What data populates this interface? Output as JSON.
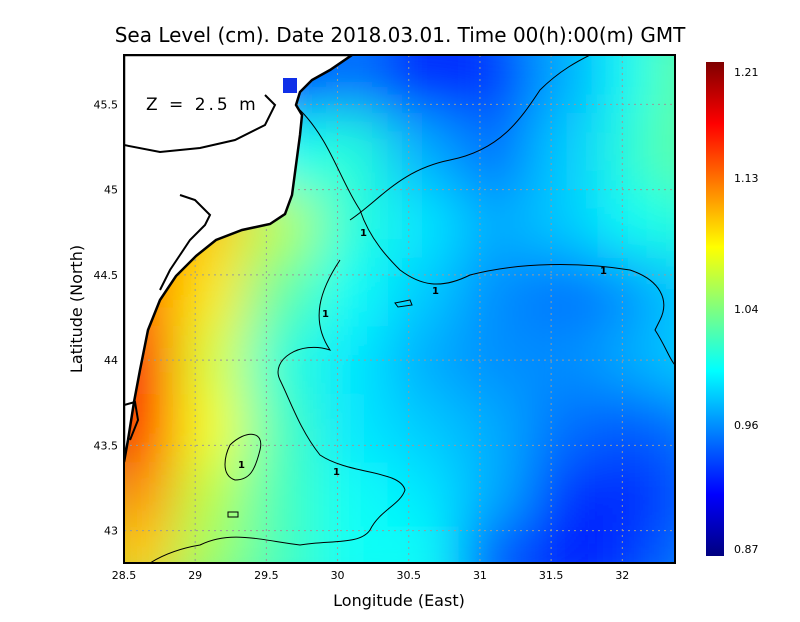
{
  "chart_data": {
    "type": "heatmap",
    "title": "Sea Level (cm). Date 2018.03.01. Time 00(h):00(m) GMT",
    "annotation": "Z = 2.5 m",
    "xlabel": "Longitude (East)",
    "ylabel": "Latitude (North)",
    "xlim": [
      28.5,
      32.37
    ],
    "ylim": [
      42.81,
      45.79
    ],
    "xticks": [
      "28.5",
      "29",
      "29.5",
      "30",
      "30.5",
      "31",
      "31.5",
      "32"
    ],
    "xtick_values": [
      28.5,
      29,
      29.5,
      30,
      30.5,
      31,
      31.5,
      32
    ],
    "yticks": [
      "43",
      "43.5",
      "44",
      "44.5",
      "45",
      "45.5"
    ],
    "ytick_values": [
      43,
      43.5,
      44,
      44.5,
      45,
      45.5
    ],
    "grid": true,
    "colorbar": {
      "min": 0.87,
      "max": 1.21,
      "tick_labels": [
        "1.21",
        "1.13",
        "1.04",
        "0.96",
        "0.87"
      ],
      "tick_values": [
        1.21,
        1.13,
        1.04,
        0.96,
        0.87
      ],
      "colormap": "jet"
    },
    "contour_label": "1",
    "grid_lon": [
      28.6,
      29.1,
      29.6,
      30.1,
      30.6,
      31.1,
      31.6,
      32.1,
      32.35
    ],
    "grid_lat": [
      45.7,
      45.2,
      44.8,
      44.4,
      44.0,
      43.6,
      43.2,
      42.85
    ],
    "values": [
      [
        null,
        null,
        0.93,
        0.95,
        0.92,
        0.93,
        0.97,
        1.0,
        1.03
      ],
      [
        null,
        null,
        1.0,
        1.01,
        0.97,
        0.95,
        0.98,
        1.01,
        1.03
      ],
      [
        null,
        1.1,
        1.06,
        1.01,
        0.99,
        0.97,
        0.98,
        1.0,
        1.01
      ],
      [
        1.13,
        1.09,
        1.03,
        1.0,
        0.98,
        0.96,
        0.95,
        0.96,
        0.98
      ],
      [
        1.16,
        1.07,
        1.01,
        0.99,
        0.97,
        0.96,
        0.96,
        0.97,
        0.98
      ],
      [
        1.16,
        1.08,
        1.02,
        0.99,
        0.98,
        0.97,
        0.95,
        0.94,
        0.95
      ],
      [
        1.12,
        1.06,
        1.02,
        1.0,
        0.99,
        0.97,
        0.93,
        0.92,
        0.94
      ],
      [
        1.1,
        1.05,
        1.02,
        1.0,
        1.0,
        0.94,
        0.92,
        0.93,
        0.95
      ]
    ]
  }
}
